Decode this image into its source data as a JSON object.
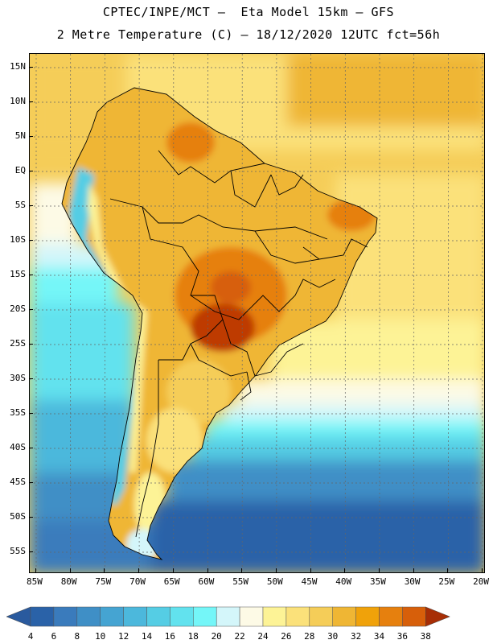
{
  "header": {
    "line1": "CPTEC/INPE/MCT –  Eta Model 15km – GFS",
    "line2": "2 Metre Temperature (C) – 18/12/2020 12UTC fct=56h"
  },
  "map": {
    "lat_labels": [
      "15N",
      "10N",
      "5N",
      "EQ",
      "5S",
      "10S",
      "15S",
      "20S",
      "25S",
      "30S",
      "35S",
      "40S",
      "45S",
      "50S",
      "55S"
    ],
    "lon_labels": [
      "85W",
      "80W",
      "75W",
      "70W",
      "65W",
      "60W",
      "55W",
      "50W",
      "45W",
      "40W",
      "35W",
      "30W",
      "25W",
      "20W"
    ]
  },
  "colorbar": {
    "labels": [
      "4",
      "6",
      "8",
      "10",
      "12",
      "14",
      "16",
      "18",
      "20",
      "22",
      "24",
      "26",
      "28",
      "30",
      "32",
      "34",
      "36",
      "38"
    ],
    "colors": [
      "#2a62a8",
      "#3a7bbc",
      "#3f8fc6",
      "#45a4d2",
      "#4cb8dc",
      "#55cde4",
      "#62e2ee",
      "#74f6f8",
      "#d4f6fa",
      "#fdfae6",
      "#fdf396",
      "#fbe17a",
      "#f5cd58",
      "#efb634",
      "#f0a20a",
      "#e6800e",
      "#d75f0a",
      "#be3a06"
    ],
    "under_color": "#2a5a9e",
    "over_color": "#a72e06"
  }
}
